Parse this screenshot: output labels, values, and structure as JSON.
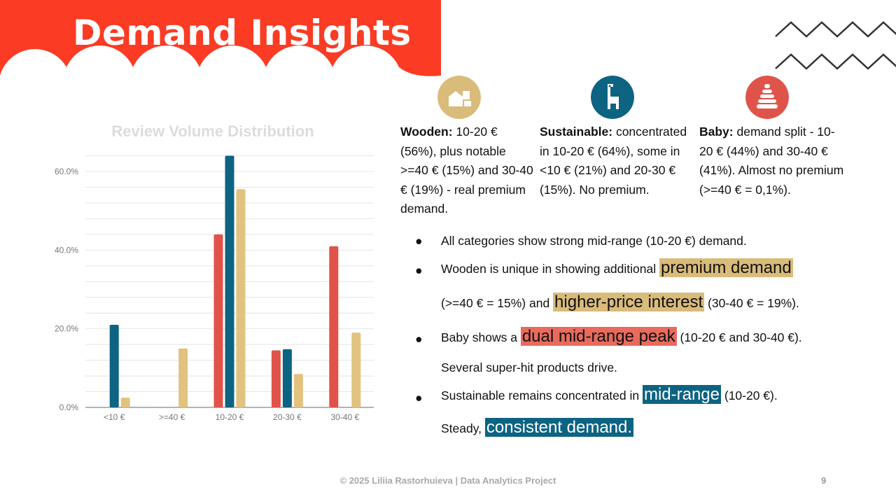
{
  "slide": {
    "title": "Demand Insights",
    "page_number": "9",
    "footer": "© 2025 Liliia Rastorhuieva | Data Analytics Project"
  },
  "colors": {
    "banner": "#fb3b24",
    "wooden": "#d9bb7a",
    "sustainable": "#0d6382",
    "baby": "#e0534a"
  },
  "categories": [
    {
      "icon": "wooden-blocks-icon",
      "name": "Wooden:",
      "text": "10-20 € (56%), plus notable >=40 € (15%) and 30-40 € (19%) - real premium demand."
    },
    {
      "icon": "giraffe-toy-icon",
      "name": "Sustainable:",
      "text": "concentrated in 10-20 € (64%), some in <10 € (21%) and 20-30 € (15%). No premium."
    },
    {
      "icon": "stacking-rings-icon",
      "name": "Baby:",
      "text": "demand split - 10-20 € (44%) and 30-40 € (41%). Almost no premium (>=40 € = 0,1%)."
    }
  ],
  "bullets": {
    "b1": "All categories show strong mid-range (10-20 €) demand.",
    "b2_pre": "Wooden is unique in showing additional ",
    "b2_hl1": "premium demand",
    "b2_line2_pre": "(>=40 € = 15%) and ",
    "b2_hl2": "higher-price interest",
    "b2_line2_post": " (30-40 € = 19%).",
    "b3_pre": "Baby shows a ",
    "b3_hl": "dual mid-range peak",
    "b3_post": " (10-20 € and 30-40 €).",
    "b3_line2": "Several super-hit products drive.",
    "b4_pre": "Sustainable remains concentrated in ",
    "b4_hl": "mid-range",
    "b4_post": "  (10-20 €).",
    "b4_line2_pre": "Steady, ",
    "b4_hl2": "consistent demand."
  },
  "chart_data": {
    "type": "bar",
    "title": "Review Volume Distribution",
    "categories": [
      "<10 €",
      ">=40 €",
      "10-20 €",
      "20-30 €",
      "30-40 €"
    ],
    "category_icons": [
      "euro-down-arrow-icon",
      "diamond-icon",
      "wallet-icon",
      "star-icon",
      "star-plus-icon"
    ],
    "series": [
      {
        "color": "#e0534a",
        "values": [
          0,
          0.1,
          44,
          14.5,
          41
        ]
      },
      {
        "color": "#0d6382",
        "values": [
          21,
          0,
          64,
          14.8,
          0
        ]
      },
      {
        "color": "#e2c27f",
        "values": [
          2.5,
          15,
          55.5,
          8.5,
          19
        ]
      }
    ],
    "ylim": [
      0,
      60
    ],
    "yticks": [
      "0.0%",
      "20.0%",
      "40.0%",
      "60.0%"
    ],
    "ytick_values": [
      0,
      20,
      40,
      60
    ],
    "grid": true,
    "legend": "none"
  }
}
